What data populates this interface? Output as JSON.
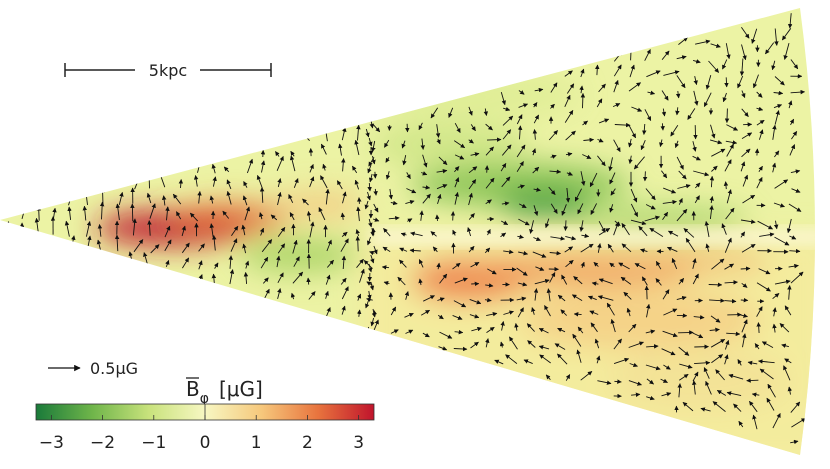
{
  "scale_bar": {
    "label": "5kpc"
  },
  "vector_key": {
    "label": "0.5μG"
  },
  "colorbar": {
    "title": "B̄φ [μG]",
    "title_main": "B",
    "title_sub": "φ",
    "title_unit": "[μG]",
    "range": [
      -3.3,
      3.3
    ],
    "ticks": [
      -3,
      -2,
      -1,
      0,
      1,
      2,
      3
    ],
    "tick_labels": [
      "−3",
      "−2",
      "−1",
      "0",
      "1",
      "2",
      "3"
    ],
    "colors": [
      "#1a7a3a",
      "#6fb54a",
      "#c8e27c",
      "#f7f7c2",
      "#f6c87c",
      "#e8743e",
      "#c0142c"
    ]
  },
  "colors": {
    "background_field": "#ecf3a4",
    "green": "#6fb54a",
    "orange": "#f08a50",
    "red": "#c01a2e",
    "arrow": "#111111"
  }
}
